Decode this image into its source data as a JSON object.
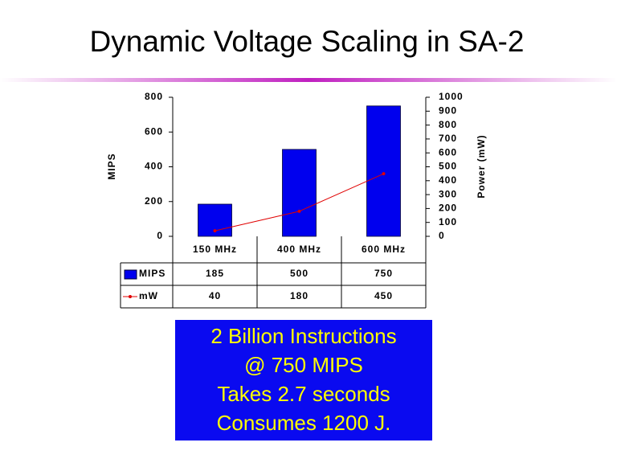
{
  "chart_data": {
    "type": "bar",
    "title": "Dynamic Voltage Scaling in SA-2",
    "categories": [
      "150 MHz",
      "400 MHz",
      "600 MHz"
    ],
    "series": [
      {
        "name": "MIPS",
        "type": "bar",
        "color": "#0000ee",
        "values": [
          185,
          500,
          750
        ]
      },
      {
        "name": "mW",
        "type": "line",
        "color": "#e00000",
        "axis": "y2",
        "values": [
          40,
          180,
          450
        ]
      }
    ],
    "ylabel": "MIPS",
    "y2label": "Power (mW)",
    "ylim": [
      0,
      800
    ],
    "yticks": [
      0,
      200,
      400,
      600,
      800
    ],
    "y2lim": [
      0,
      1000
    ],
    "y2ticks": [
      0,
      100,
      200,
      300,
      400,
      500,
      600,
      700,
      800,
      900,
      1000
    ],
    "annotation": [
      "2 Billion Instructions",
      "@ 750 MIPS",
      "Takes 2.7 seconds",
      "Consumes 1200 J."
    ]
  }
}
